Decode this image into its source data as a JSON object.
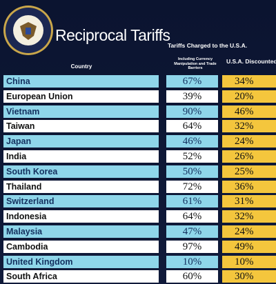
{
  "header": {
    "title": "Reciprocal Tariffs",
    "columns": [
      "Country",
      "Tariffs Charged to the U.S.A.",
      "U.S.A. Discounted Reciprocal Tariffs"
    ],
    "charged_note": "Including Currency Manipulation and Trade Barriers"
  },
  "table": {
    "rows": [
      [
        "China",
        "67%",
        "34%"
      ],
      [
        "European Union",
        "39%",
        "20%"
      ],
      [
        "Vietnam",
        "90%",
        "46%"
      ],
      [
        "Taiwan",
        "64%",
        "32%"
      ],
      [
        "Japan",
        "46%",
        "24%"
      ],
      [
        "India",
        "52%",
        "26%"
      ],
      [
        "South Korea",
        "50%",
        "25%"
      ],
      [
        "Thailand",
        "72%",
        "36%"
      ],
      [
        "Switzerland",
        "61%",
        "31%"
      ],
      [
        "Indonesia",
        "64%",
        "32%"
      ],
      [
        "Malaysia",
        "47%",
        "24%"
      ],
      [
        "Cambodia",
        "97%",
        "49%"
      ],
      [
        "United Kingdom",
        "10%",
        "10%"
      ],
      [
        "South Africa",
        "60%",
        "30%"
      ]
    ]
  }
}
